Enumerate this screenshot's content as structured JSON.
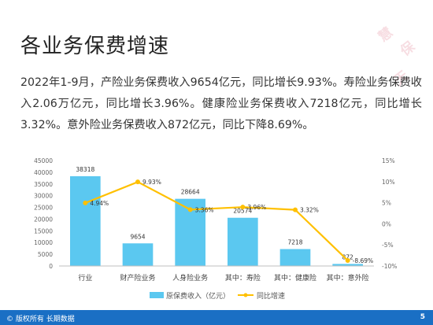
{
  "page": {
    "title": "各业务保费增速",
    "summary": "2022年1-9月，产险业务保费收入9654亿元，同比增长9.93%。寿险业务保费收入2.06万亿元，同比增长3.96%。健康险业务保费收入7218亿元，同比增长3.32%。意外险业务保费收入872亿元，同比下降8.69%。",
    "watermark": "慧保天下",
    "footer_text": "© 版权所有 长期数据",
    "page_number": "5"
  },
  "colors": {
    "bar": "#5bc8f0",
    "line": "#ffc000",
    "footer": "#1a6fc4"
  },
  "chart_data": {
    "type": "bar",
    "categories": [
      "行业",
      "财产险业务",
      "人身险业务",
      "其中：寿险",
      "其中：健康险",
      "其中：意外险"
    ],
    "series": [
      {
        "name": "原保费收入（亿元）",
        "type": "bar",
        "axis": "left",
        "values": [
          38318,
          9654,
          28664,
          20574,
          7218,
          872
        ],
        "labels": [
          "38318",
          "9654",
          "28664",
          "20574",
          "7218",
          "872"
        ]
      },
      {
        "name": "同比增速",
        "type": "line",
        "axis": "right",
        "values": [
          4.94,
          9.93,
          3.36,
          3.96,
          3.32,
          -8.69
        ],
        "labels": [
          "4.94%",
          "9.93%",
          "3.36%",
          "3.96%",
          "3.32%",
          "-8.69%"
        ]
      }
    ],
    "y_left": {
      "min": 0,
      "max": 45000,
      "step": 5000,
      "ticks": [
        "0",
        "5000",
        "10000",
        "15000",
        "20000",
        "25000",
        "30000",
        "35000",
        "40000",
        "45000"
      ]
    },
    "y_right": {
      "min": -10,
      "max": 15,
      "step": 5,
      "ticks": [
        "-10%",
        "-5%",
        "0%",
        "5%",
        "10%",
        "15%"
      ]
    },
    "grid": false,
    "legend_position": "bottom"
  }
}
